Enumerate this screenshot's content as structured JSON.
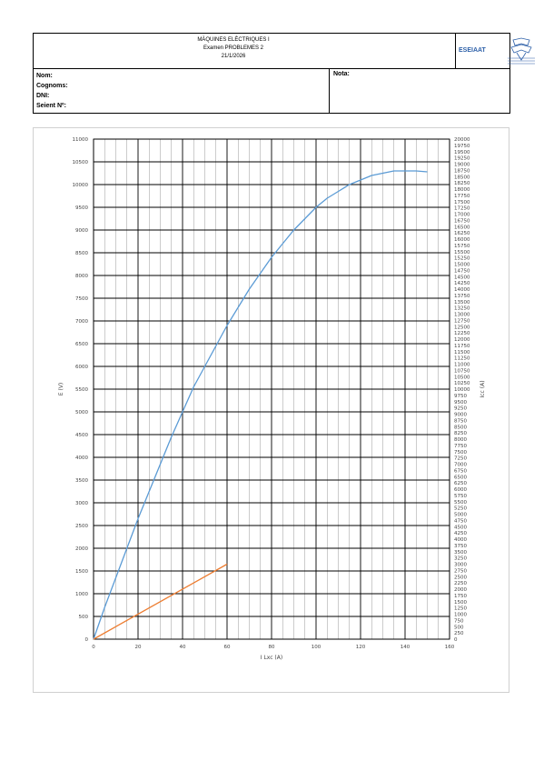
{
  "header": {
    "line1": "MÀQUINES ELÈCTRIQUES I",
    "line2": "Examen PROBLEMES 2",
    "line3": "21/1/2026",
    "logo_text": "ESEIAAT",
    "logo_icon": "eseiaat-logo-icon"
  },
  "info": {
    "nom": "Nom:",
    "cognoms": "Cognoms:",
    "dni": "DNI:",
    "seient": "Seient Nº:",
    "nota": "Nota:"
  },
  "chart_data": {
    "type": "line",
    "xlabel": "I Lxc (A)",
    "ylabel_left": "E (V)",
    "ylabel_right": "Icc (A)",
    "xlim": [
      0,
      160
    ],
    "ylim_left": [
      0,
      11000
    ],
    "ylim_right": [
      0,
      20000
    ],
    "x_major_ticks": [
      0,
      20,
      40,
      60,
      80,
      100,
      120,
      140,
      160
    ],
    "x_minor_step": 5,
    "y_left_step": 500,
    "y_right_step": 250,
    "grid": true,
    "series": [
      {
        "axis": "left",
        "color": "#5b9bd5",
        "x": [
          0,
          5,
          10,
          15,
          20,
          25,
          30,
          35,
          40,
          45,
          50,
          55,
          60,
          65,
          70,
          75,
          80,
          85,
          90,
          95,
          100,
          105,
          110,
          115,
          120,
          125,
          130,
          135,
          140,
          145,
          150
        ],
        "y": [
          0,
          700,
          1350,
          2000,
          2650,
          3250,
          3850,
          4450,
          5000,
          5550,
          6000,
          6450,
          6900,
          7300,
          7700,
          8050,
          8400,
          8700,
          9000,
          9250,
          9500,
          9700,
          9850,
          10000,
          10100,
          10200,
          10250,
          10300,
          10300,
          10300,
          10280
        ]
      },
      {
        "axis": "right",
        "color": "#ed7d31",
        "x": [
          0,
          60
        ],
        "y": [
          0,
          3000
        ]
      }
    ]
  }
}
